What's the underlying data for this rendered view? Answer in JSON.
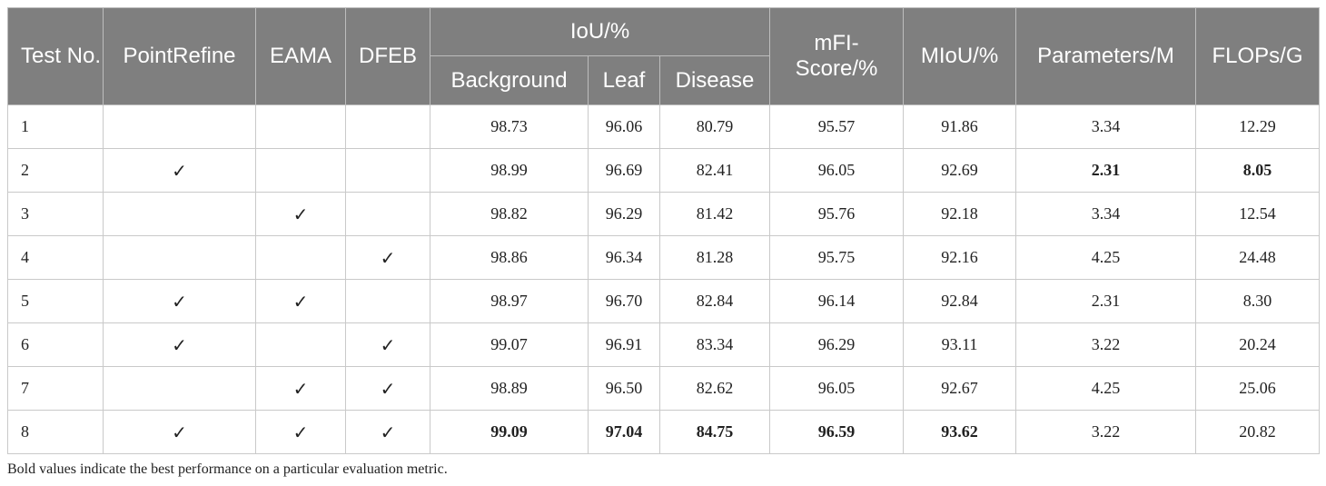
{
  "headers": {
    "test_no": "Test No.",
    "point_refine": "PointRefine",
    "eama": "EAMA",
    "dfeb": "DFEB",
    "iou_group": "IoU/%",
    "background": "Background",
    "leaf": "Leaf",
    "disease": "Disease",
    "mfi_score": "mFI-Score/%",
    "miou": "MIoU/%",
    "parameters": "Parameters/M",
    "flops": "FLOPs/G"
  },
  "check_symbol": "✓",
  "rows": [
    {
      "no": "1",
      "point_refine": "",
      "eama": "",
      "dfeb": "",
      "background": "98.73",
      "leaf": "96.06",
      "disease": "80.79",
      "mfi": "95.57",
      "miou": "91.86",
      "params": "3.34",
      "flops": "12.29"
    },
    {
      "no": "2",
      "point_refine": "✓",
      "eama": "",
      "dfeb": "",
      "background": "98.99",
      "leaf": "96.69",
      "disease": "82.41",
      "mfi": "96.05",
      "miou": "92.69",
      "params": "2.31",
      "flops": "8.05"
    },
    {
      "no": "3",
      "point_refine": "",
      "eama": "✓",
      "dfeb": "",
      "background": "98.82",
      "leaf": "96.29",
      "disease": "81.42",
      "mfi": "95.76",
      "miou": "92.18",
      "params": "3.34",
      "flops": "12.54"
    },
    {
      "no": "4",
      "point_refine": "",
      "eama": "",
      "dfeb": "✓",
      "background": "98.86",
      "leaf": "96.34",
      "disease": "81.28",
      "mfi": "95.75",
      "miou": "92.16",
      "params": "4.25",
      "flops": "24.48"
    },
    {
      "no": "5",
      "point_refine": "✓",
      "eama": "✓",
      "dfeb": "",
      "background": "98.97",
      "leaf": "96.70",
      "disease": "82.84",
      "mfi": "96.14",
      "miou": "92.84",
      "params": "2.31",
      "flops": "8.30"
    },
    {
      "no": "6",
      "point_refine": "✓",
      "eama": "",
      "dfeb": "✓",
      "background": "99.07",
      "leaf": "96.91",
      "disease": "83.34",
      "mfi": "96.29",
      "miou": "93.11",
      "params": "3.22",
      "flops": "20.24"
    },
    {
      "no": "7",
      "point_refine": "",
      "eama": "✓",
      "dfeb": "✓",
      "background": "98.89",
      "leaf": "96.50",
      "disease": "82.62",
      "mfi": "96.05",
      "miou": "92.67",
      "params": "4.25",
      "flops": "25.06"
    },
    {
      "no": "8",
      "point_refine": "✓",
      "eama": "✓",
      "dfeb": "✓",
      "background": "99.09",
      "leaf": "97.04",
      "disease": "84.75",
      "mfi": "96.59",
      "miou": "93.62",
      "params": "3.22",
      "flops": "20.82"
    }
  ],
  "footnote": "Bold values indicate the best performance on a particular evaluation metric."
}
